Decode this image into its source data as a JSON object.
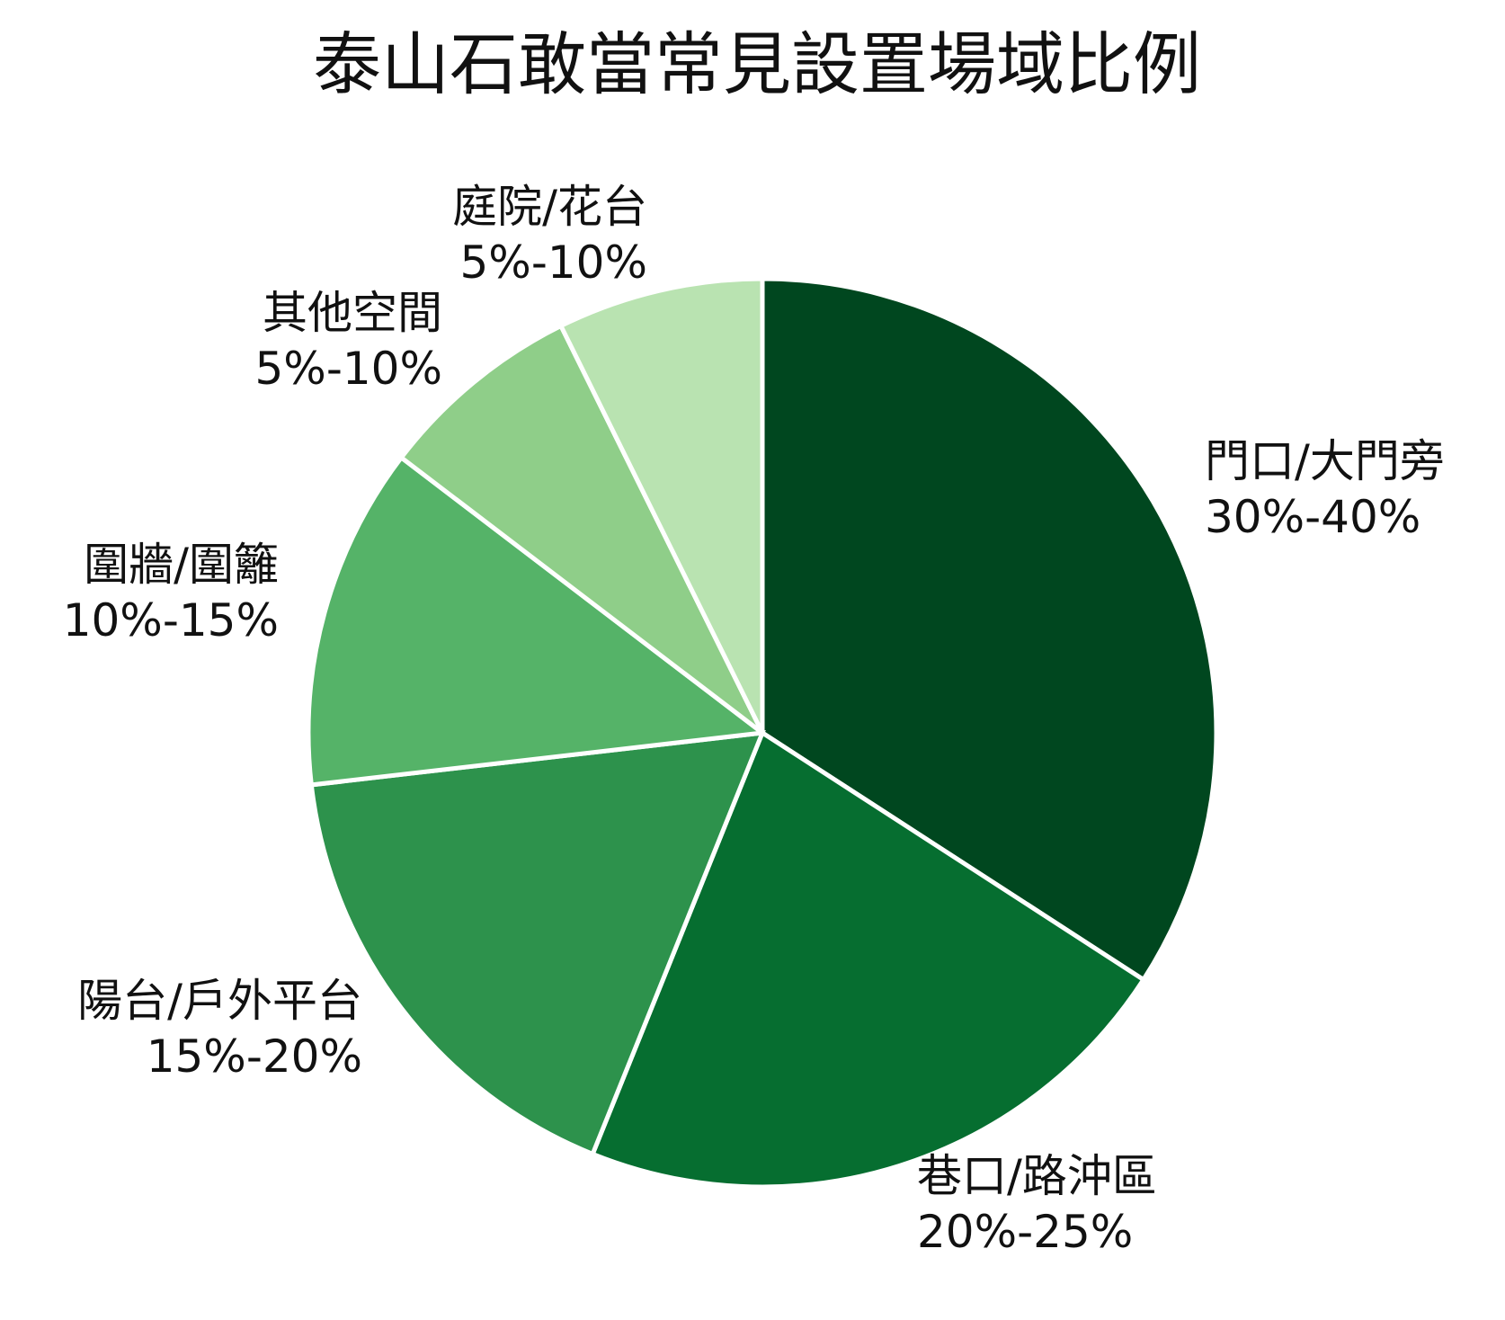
{
  "chart_data": {
    "type": "pie",
    "title": "泰山石敢當常見設置場域比例",
    "slices": [
      {
        "label": "門口/大門旁",
        "range_text": "30%-40%",
        "value": 0.35,
        "color": "#00471f"
      },
      {
        "label": "巷口/路沖區",
        "range_text": "20%-25%",
        "value": 0.225,
        "color": "#066e30"
      },
      {
        "label": "陽台/戶外平台",
        "range_text": "15%-20%",
        "value": 0.175,
        "color": "#2d924c"
      },
      {
        "label": "圍牆/圍籬",
        "range_text": "10%-15%",
        "value": 0.125,
        "color": "#55b368"
      },
      {
        "label": "其他空間",
        "range_text": "5%-10%",
        "value": 0.075,
        "color": "#8fce89"
      },
      {
        "label": "庭院/花台",
        "range_text": "5%-10%",
        "value": 0.075,
        "color": "#b9e3b1"
      }
    ],
    "start_angle": "12 o'clock",
    "direction": "clockwise",
    "legend": "none"
  }
}
